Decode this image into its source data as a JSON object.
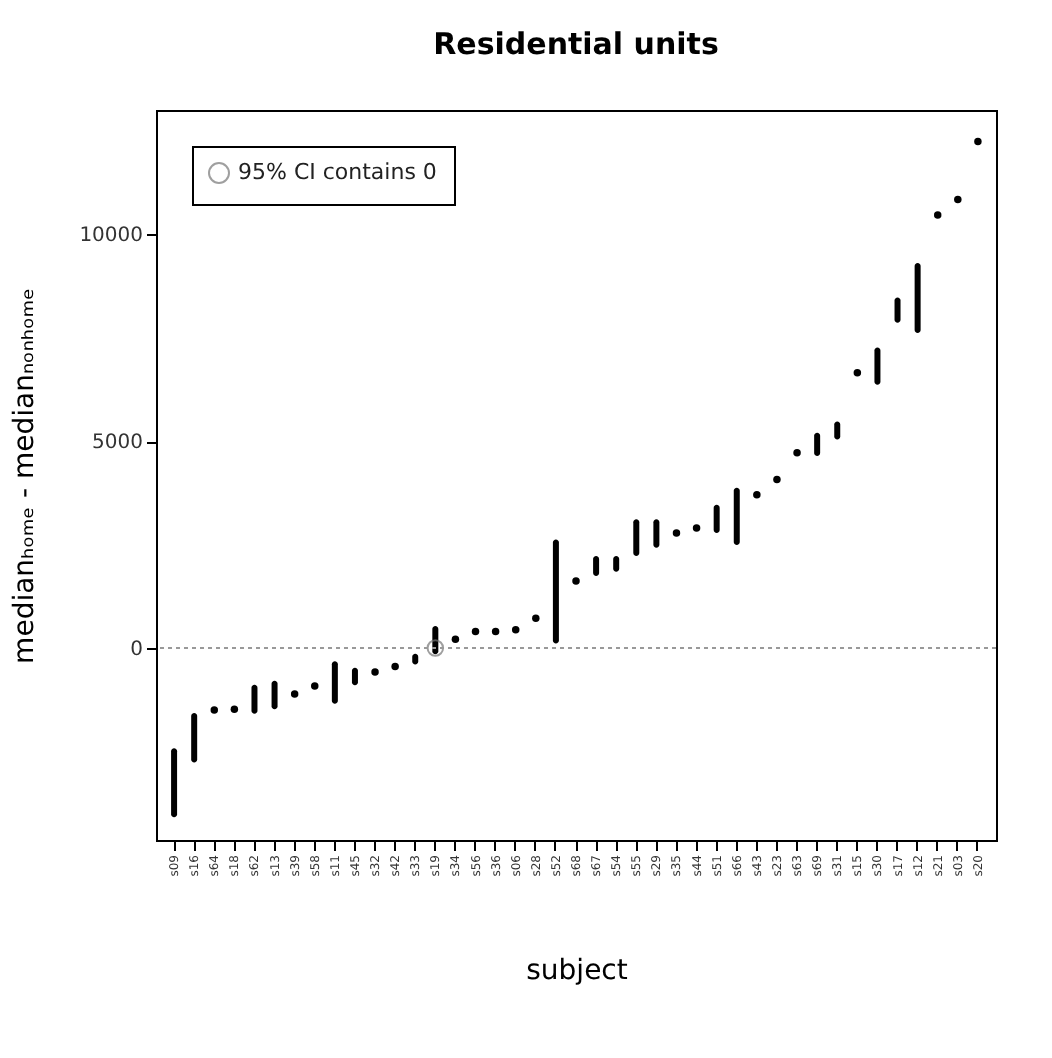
{
  "chart_data": {
    "type": "bar",
    "title": "Residential units",
    "xlabel": "subject",
    "ylabel": "medianₕₒₘₑ - medianₙₒₙₕₒₘₑ",
    "categories": [
      "s09",
      "s16",
      "s64",
      "s18",
      "s62",
      "s13",
      "s39",
      "s58",
      "s11",
      "s45",
      "s32",
      "s42",
      "s33",
      "s19",
      "s34",
      "s56",
      "s36",
      "s06",
      "s28",
      "s52",
      "s68",
      "s67",
      "s54",
      "s55",
      "s29",
      "s35",
      "s44",
      "s51",
      "s66",
      "s43",
      "s23",
      "s63",
      "s69",
      "s31",
      "s15",
      "s30",
      "s17",
      "s12",
      "s21",
      "s03",
      "s20"
    ],
    "ylim": [
      -4640,
      13000
    ],
    "yticks": [
      0,
      5000,
      10000
    ],
    "legend": "top left",
    "ref_lines": [
      {
        "axis": "y",
        "value": 0,
        "color": "#999999",
        "line_style": "dotted"
      }
    ],
    "series": [
      {
        "color": "#000000",
        "base": [
          -4090,
          -2770,
          null,
          null,
          -1590,
          -1480,
          null,
          null,
          -1350,
          -900,
          null,
          null,
          -400,
          -150,
          null,
          null,
          null,
          null,
          null,
          110,
          null,
          1740,
          1840,
          2220,
          2420,
          null,
          null,
          2780,
          2490,
          null,
          null,
          null,
          4640,
          5040,
          null,
          6360,
          7860,
          7610,
          null,
          null,
          null
        ],
        "values": [
          1670,
          1200,
          null,
          null,
          700,
          690,
          null,
          null,
          1030,
          420,
          null,
          null,
          260,
          680,
          null,
          null,
          null,
          null,
          null,
          2510,
          null,
          480,
          380,
          890,
          690,
          null,
          null,
          680,
          1380,
          null,
          null,
          null,
          560,
          430,
          null,
          900,
          610,
          1690,
          null,
          null,
          null
        ]
      },
      {
        "type": "scatter",
        "color": "#000000",
        "marker": "circle",
        "x": [
          "s64",
          "s18",
          "s39",
          "s58",
          "s32",
          "s42",
          "s34",
          "s56",
          "s36",
          "s06",
          "s28",
          "s68",
          "s35",
          "s44",
          "s43",
          "s23",
          "s63",
          "s15",
          "s21",
          "s03",
          "s20"
        ],
        "values": [
          -1500,
          -1480,
          -1110,
          -920,
          -580,
          -450,
          210,
          400,
          400,
          440,
          720,
          1620,
          2780,
          2900,
          3700,
          4070,
          4720,
          6650,
          10460,
          10840,
          12240
        ]
      },
      {
        "type": "scatter",
        "name": "95% CI contains 0",
        "color": "#777777",
        "marker": "circle",
        "x": [
          "s19"
        ],
        "values": [
          0
        ]
      }
    ]
  }
}
